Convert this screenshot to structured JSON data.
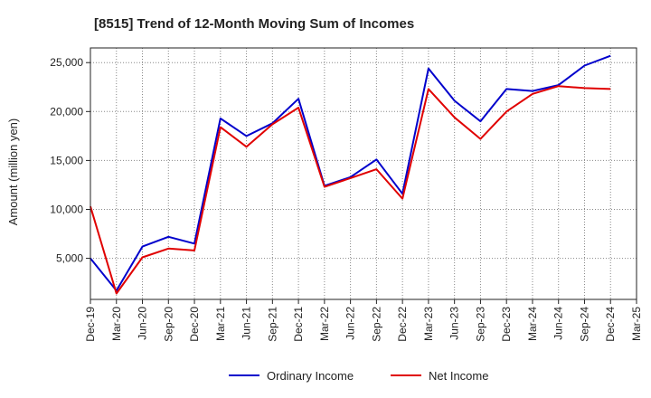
{
  "chart_data": {
    "type": "line",
    "title": "[8515]  Trend of 12-Month Moving Sum of Incomes",
    "xlabel": "",
    "ylabel": "Amount (million yen)",
    "ylim": [
      800,
      26500
    ],
    "yticks": [
      5000,
      10000,
      15000,
      20000,
      25000
    ],
    "ytick_labels": [
      "5,000",
      "10,000",
      "15,000",
      "20,000",
      "25,000"
    ],
    "grid": true,
    "legend_position": "bottom-center",
    "categories": [
      "Dec-19",
      "Mar-20",
      "Jun-20",
      "Sep-20",
      "Dec-20",
      "Mar-21",
      "Jun-21",
      "Sep-21",
      "Dec-21",
      "Mar-22",
      "Jun-22",
      "Sep-22",
      "Dec-22",
      "Mar-23",
      "Jun-23",
      "Sep-23",
      "Dec-23",
      "Mar-24",
      "Jun-24",
      "Sep-24",
      "Dec-24",
      "Mar-25"
    ],
    "series": [
      {
        "name": "Ordinary Income",
        "color": "#0000cc",
        "values": [
          5000,
          1700,
          6200,
          7200,
          6500,
          19300,
          17500,
          18800,
          21300,
          12400,
          13300,
          15100,
          11600,
          24400,
          21100,
          19000,
          22300,
          22100,
          22700,
          24700,
          25700,
          null
        ]
      },
      {
        "name": "Net Income",
        "color": "#e00000",
        "values": [
          10300,
          1400,
          5100,
          6000,
          5800,
          18400,
          16400,
          18700,
          20400,
          12300,
          13200,
          14100,
          11100,
          22300,
          19400,
          17200,
          20000,
          21800,
          22600,
          22400,
          22300,
          null
        ]
      }
    ]
  }
}
